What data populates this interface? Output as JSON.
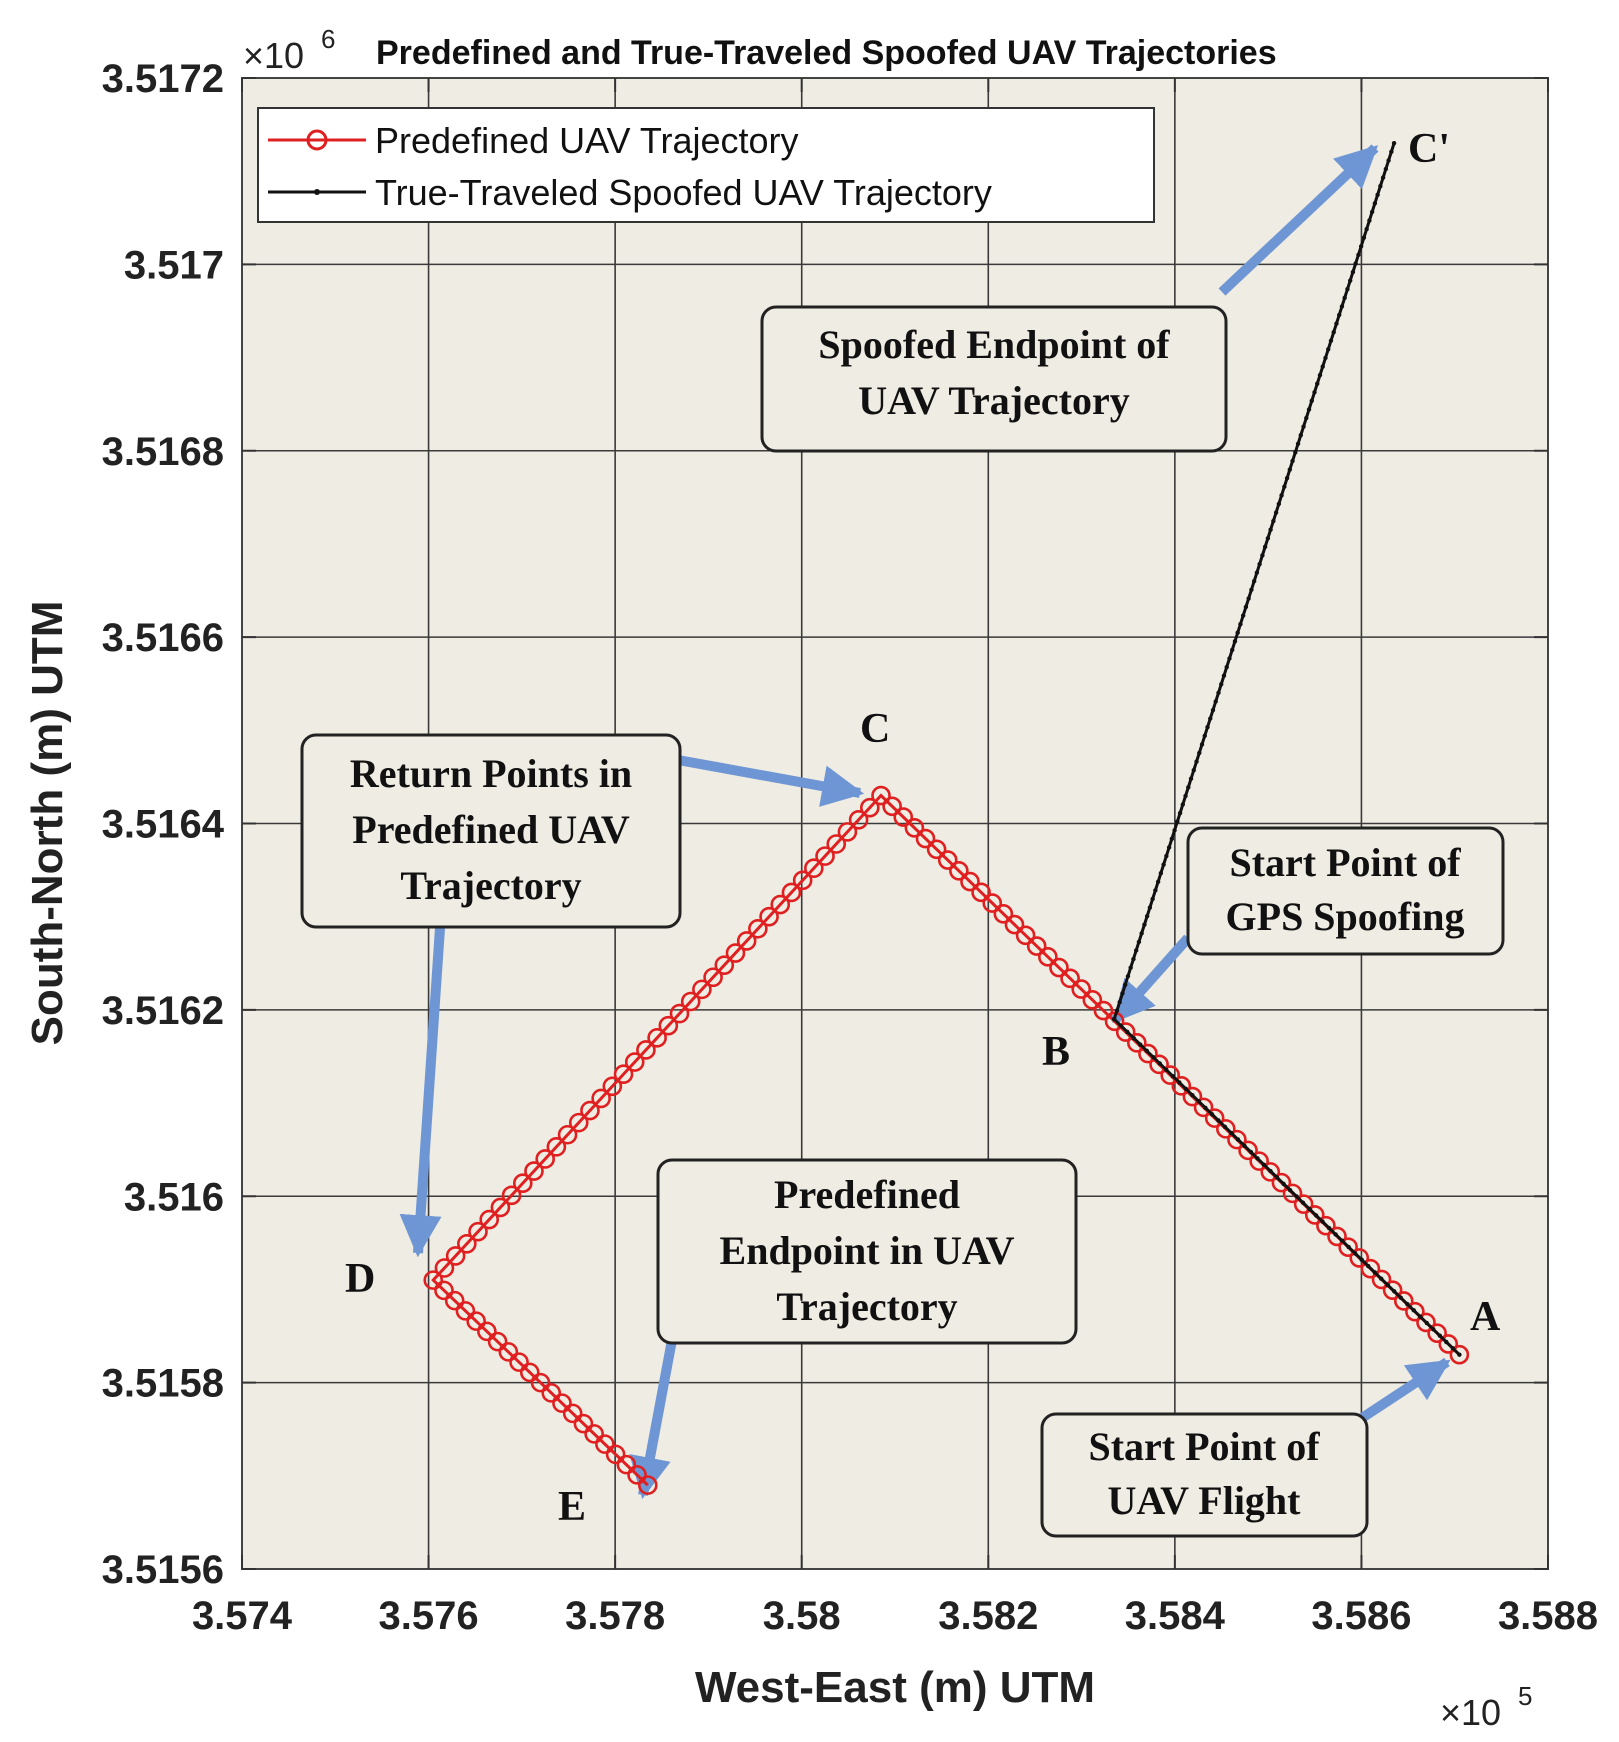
{
  "chart_data": {
    "type": "line",
    "title": "Predefined and True-Traveled  Spoofed UAV Trajectories",
    "xlabel": "West-East (m) UTM",
    "ylabel": "South-North (m) UTM",
    "x_multiplier": "×10",
    "x_multiplier_exp": "5",
    "y_multiplier": "×10",
    "y_multiplier_exp": "6",
    "xlim": [
      3.574,
      3.588
    ],
    "ylim": [
      3.5156,
      3.5172
    ],
    "xticks": [
      3.574,
      3.576,
      3.578,
      3.58,
      3.582,
      3.584,
      3.586,
      3.588
    ],
    "xtick_labels": [
      "3.574",
      "3.576",
      "3.578",
      "3.58",
      "3.582",
      "3.584",
      "3.586",
      "3.588"
    ],
    "yticks": [
      3.5156,
      3.5158,
      3.516,
      3.5162,
      3.5164,
      3.5166,
      3.5168,
      3.517,
      3.5172
    ],
    "ytick_labels": [
      "3.5156",
      "3.5158",
      "3.516",
      "3.5162",
      "3.5164",
      "3.5166",
      "3.5168",
      "3.517",
      "3.5172"
    ],
    "grid": true,
    "legend_position": "top-left",
    "series": [
      {
        "name": "Predefined UAV Trajectory",
        "color": "#e02020",
        "marker": "circle",
        "vertices": [
          {
            "x": 3.58705,
            "y": 3.51583
          },
          {
            "x": 3.58085,
            "y": 3.51643
          },
          {
            "x": 3.57605,
            "y": 3.51591
          },
          {
            "x": 3.57835,
            "y": 3.51569
          }
        ],
        "segment_points": [
          52,
          40,
          20
        ]
      },
      {
        "name": "True-Traveled  Spoofed UAV Trajectory",
        "color": "#111111",
        "marker": "dot",
        "vertices": [
          {
            "x": 3.58705,
            "y": 3.51583
          },
          {
            "x": 3.58335,
            "y": 3.51619
          },
          {
            "x": 3.58635,
            "y": 3.51713
          }
        ]
      }
    ],
    "point_labels": [
      {
        "id": "A",
        "text": "A",
        "x": 3.58705,
        "y": 3.51583
      },
      {
        "id": "B",
        "text": "B",
        "x": 3.58335,
        "y": 3.51619
      },
      {
        "id": "C",
        "text": "C",
        "x": 3.58085,
        "y": 3.51643
      },
      {
        "id": "Cp",
        "text": "C'",
        "x": 3.58635,
        "y": 3.51713
      },
      {
        "id": "D",
        "text": "D",
        "x": 3.57605,
        "y": 3.51591
      },
      {
        "id": "E",
        "text": "E",
        "x": 3.57835,
        "y": 3.51569
      }
    ],
    "annotations": [
      {
        "id": "spoofed-endpoint",
        "lines": [
          "Spoofed Endpoint of",
          "UAV Trajectory"
        ],
        "target": "Cp"
      },
      {
        "id": "return-points",
        "lines": [
          "Return Points in",
          "Predefined UAV",
          "Trajectory"
        ],
        "targets": [
          "C",
          "D"
        ]
      },
      {
        "id": "gps-spoofing-start",
        "lines": [
          "Start Point of",
          "GPS Spoofing"
        ],
        "target": "B"
      },
      {
        "id": "predefined-endpoint",
        "lines": [
          "Predefined",
          "Endpoint in UAV",
          "Trajectory"
        ],
        "target": "E"
      },
      {
        "id": "flight-start",
        "lines": [
          "Start Point of",
          "UAV Flight"
        ],
        "target": "A"
      }
    ],
    "colors": {
      "plot_background": "#efece3",
      "arrow": "#6f96d4"
    }
  }
}
